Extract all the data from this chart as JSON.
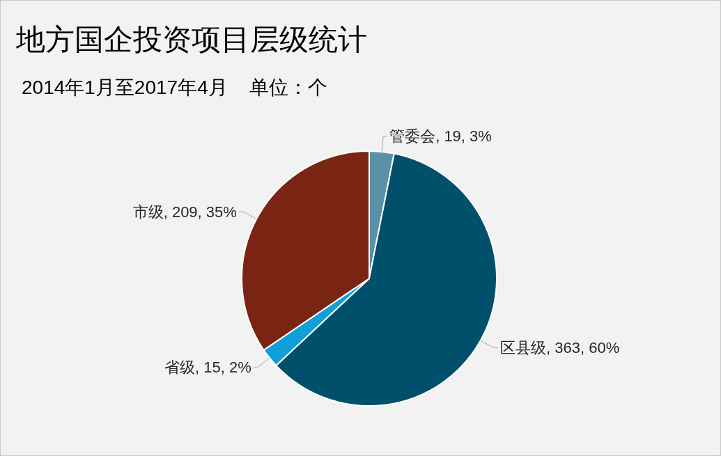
{
  "chart_data": {
    "type": "pie",
    "title": "地方国企投资项目层级统计",
    "subtitle": "2014年1月至2017年4月    单位：个",
    "categories": [
      "管委会",
      "区县级",
      "省级",
      "市级"
    ],
    "values": [
      19,
      363,
      15,
      209
    ],
    "value_labels": [
      "19, 3%",
      "363, 60%",
      "15, 2%",
      "209, 35%"
    ],
    "colors": [
      "#5a91a6",
      "#00506b",
      "#109fd8",
      "#7a2413"
    ]
  }
}
